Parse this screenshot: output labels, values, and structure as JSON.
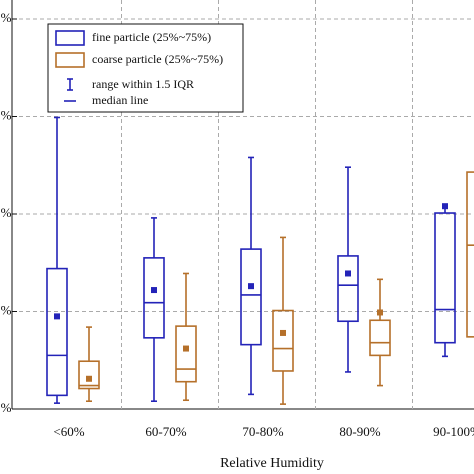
{
  "chart_data": {
    "type": "box",
    "x_label": "Relative Humidity",
    "categories": [
      "<60%",
      "60-70%",
      "70-80%",
      "80-90%",
      "90-100%"
    ],
    "ylim": [
      0,
      40
    ],
    "yticks": [
      {
        "value": 0,
        "label": "%"
      },
      {
        "value": 10,
        "label": "%"
      },
      {
        "value": 20,
        "label": "%"
      },
      {
        "value": 30,
        "label": "%"
      },
      {
        "value": 40,
        "label": "%"
      }
    ],
    "grid": true,
    "legend_notes": [
      "range within 1.5 IQR",
      "median line"
    ],
    "series": [
      {
        "name": "fine particle (25%~75%)",
        "color": "#2323b8",
        "whisker_low": [
          0.6,
          0.8,
          1.5,
          3.8,
          5.4
        ],
        "q1": [
          1.4,
          7.3,
          6.6,
          9.0,
          6.8
        ],
        "median": [
          5.5,
          10.9,
          11.7,
          12.7,
          10.2
        ],
        "q3": [
          14.4,
          15.5,
          16.4,
          15.7,
          20.1
        ],
        "whisker_high": [
          29.9,
          19.6,
          25.8,
          24.8,
          21.0
        ],
        "mean": [
          9.5,
          12.2,
          12.6,
          13.9,
          20.8
        ]
      },
      {
        "name": "coarse particle (25%~75%)",
        "color": "#b5702a",
        "whisker_low": [
          0.8,
          0.9,
          0.5,
          2.4,
          6.5
        ],
        "q1": [
          2.1,
          2.8,
          3.9,
          5.5,
          7.4
        ],
        "median": [
          2.4,
          4.1,
          6.2,
          6.8,
          16.8
        ],
        "q3": [
          4.9,
          8.5,
          10.1,
          9.1,
          24.3
        ],
        "whisker_high": [
          8.4,
          13.9,
          17.6,
          13.3,
          25.5
        ],
        "mean": [
          3.1,
          6.2,
          7.8,
          9.9,
          null
        ]
      }
    ]
  }
}
